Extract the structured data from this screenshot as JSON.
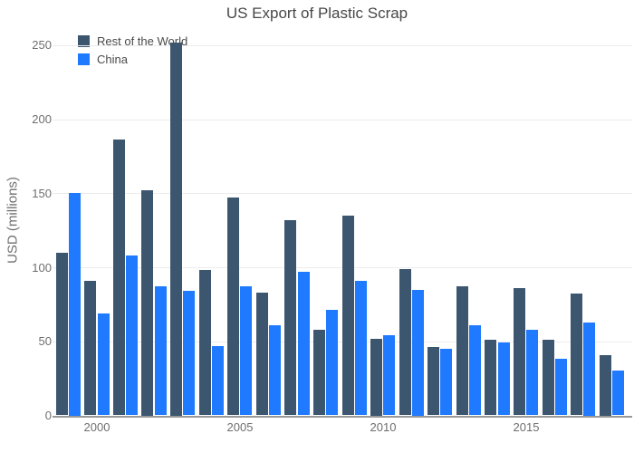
{
  "title": "US Export of Plastic Scrap",
  "legend": {
    "items": [
      {
        "label": "Rest of the World",
        "color": "#3D566F"
      },
      {
        "label": "China",
        "color": "#1F7AFF"
      }
    ]
  },
  "chart_data": {
    "type": "bar",
    "title": "US Export of Plastic Scrap",
    "xlabel": "",
    "ylabel": "USD (millions)",
    "categories": [
      1999,
      2000,
      2001,
      2002,
      2003,
      2004,
      2005,
      2006,
      2007,
      2008,
      2009,
      2010,
      2011,
      2012,
      2013,
      2014,
      2015,
      2016,
      2017,
      2018
    ],
    "series": [
      {
        "name": "Rest of the World",
        "color": "#3D566F",
        "values": [
          110,
          91,
          186,
          152,
          252,
          98,
          147,
          83,
          132,
          58,
          135,
          52,
          99,
          46,
          87,
          51,
          86,
          51,
          82,
          41
        ]
      },
      {
        "name": "China",
        "color": "#1F7AFF",
        "values": [
          150,
          69,
          108,
          87,
          84,
          47,
          87,
          61,
          97,
          71,
          91,
          54,
          85,
          45,
          61,
          49,
          58,
          38,
          63,
          30
        ]
      }
    ],
    "ylim": [
      0,
      250
    ],
    "yticks": [
      0,
      50,
      100,
      150,
      200,
      250
    ],
    "xticks": [
      2000,
      2005,
      2010,
      2015
    ],
    "grid": true,
    "legend_position": "top-left-inside",
    "colors": {
      "grid": "#ECECEC",
      "axis_line": "#999999",
      "tick_label": "#6E6E6E",
      "title": "#474747"
    }
  }
}
